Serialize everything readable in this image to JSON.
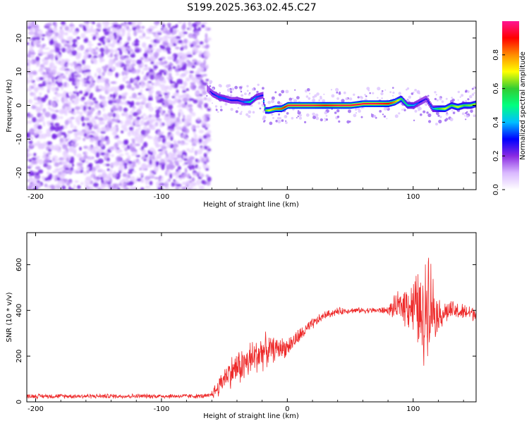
{
  "figure_title": "S199.2025.363.02.45.C27",
  "chart_data": [
    {
      "type": "heatmap",
      "title": "S199.2025.363.02.45.C27",
      "xlabel": "Height of straight line (km)",
      "ylabel": "Frequency (Hz)",
      "xlim": [
        -207,
        150
      ],
      "ylim": [
        -25,
        25
      ],
      "xticks": [
        -200,
        -100,
        0,
        100
      ],
      "yticks": [
        -20,
        -10,
        0,
        10,
        20
      ],
      "xtick_labels": [
        "-200",
        "-100",
        "0",
        "100"
      ],
      "ytick_labels": [
        "-20",
        "-10",
        "0",
        "10",
        "20"
      ],
      "colorbar": {
        "label": "Normalized spectral amplitude",
        "range": [
          0,
          1
        ],
        "ticks": [
          0.0,
          0.2,
          0.4,
          0.6,
          0.8
        ],
        "tick_labels": [
          "0.0",
          "0.2",
          "0.4",
          "0.6",
          "0.8"
        ],
        "colors": [
          "#ffffff",
          "#d9b8ff",
          "#8a2be2",
          "#0000ff",
          "#00bfff",
          "#00ff7f",
          "#32cd32",
          "#ffff00",
          "#ff8c00",
          "#ff0000",
          "#ff1493"
        ]
      },
      "noise_region": {
        "x_range": [
          -207,
          -62
        ],
        "freq_range": [
          -25,
          25
        ],
        "amplitude": "0.0-0.2"
      },
      "signal_track": {
        "x": [
          -64,
          -60,
          -55,
          -50,
          -45,
          -40,
          -35,
          -30,
          -25,
          -20,
          -18,
          -15,
          -10,
          -5,
          0,
          10,
          20,
          30,
          40,
          50,
          60,
          70,
          80,
          85,
          90,
          95,
          100,
          105,
          110,
          115,
          120,
          125,
          130,
          135,
          140,
          145,
          150
        ],
        "freq": [
          5,
          3.5,
          2.5,
          2,
          1.5,
          1.5,
          1,
          1,
          2.5,
          3,
          -1.5,
          -1.5,
          -1,
          -1,
          0,
          0,
          0,
          0,
          0,
          0,
          0.5,
          0.5,
          0.5,
          1,
          2,
          0,
          0,
          1,
          2,
          -1,
          -1,
          -1,
          0,
          -0.5,
          0,
          0,
          0.5
        ],
        "peak_amplitude": [
          0.2,
          0.3,
          0.35,
          0.35,
          0.3,
          0.3,
          0.35,
          0.5,
          0.35,
          0.3,
          0.6,
          0.7,
          0.8,
          0.85,
          0.95,
          0.95,
          0.95,
          0.9,
          0.95,
          0.95,
          0.95,
          0.95,
          0.9,
          0.8,
          0.6,
          0.5,
          0.4,
          0.3,
          0.25,
          0.4,
          0.6,
          0.7,
          0.6,
          0.7,
          0.6,
          0.65,
          0.65
        ]
      }
    },
    {
      "type": "line",
      "title": "",
      "xlabel": "Height of straight line (km)",
      "ylabel": "SNR (10 * v/v)",
      "xlim": [
        -207,
        150
      ],
      "ylim": [
        0,
        740
      ],
      "xticks": [
        -200,
        -100,
        0,
        100
      ],
      "yticks": [
        0,
        200,
        400,
        600
      ],
      "xtick_labels": [
        "-200",
        "-100",
        "0",
        "100"
      ],
      "ytick_labels": [
        "0",
        "200",
        "400",
        "600"
      ],
      "series": [
        {
          "name": "SNR",
          "color": "#ee2a2a",
          "x": [
            -207,
            -150,
            -100,
            -62,
            -55,
            -50,
            -45,
            -40,
            -35,
            -30,
            -25,
            -20,
            -10,
            0,
            10,
            20,
            30,
            40,
            50,
            60,
            70,
            80,
            85,
            90,
            95,
            100,
            105,
            108,
            110,
            112,
            115,
            120,
            130,
            140,
            150
          ],
          "y": [
            25,
            25,
            25,
            25,
            60,
            110,
            130,
            150,
            160,
            180,
            200,
            220,
            230,
            240,
            290,
            340,
            380,
            395,
            400,
            400,
            400,
            400,
            410,
            420,
            430,
            420,
            400,
            300,
            420,
            500,
            420,
            380,
            400,
            390,
            390
          ],
          "spread": [
            12,
            12,
            12,
            12,
            50,
            60,
            80,
            90,
            95,
            100,
            100,
            95,
            60,
            50,
            40,
            30,
            20,
            20,
            15,
            15,
            15,
            20,
            60,
            80,
            120,
            150,
            220,
            260,
            300,
            280,
            200,
            80,
            50,
            45,
            40
          ]
        }
      ]
    }
  ]
}
